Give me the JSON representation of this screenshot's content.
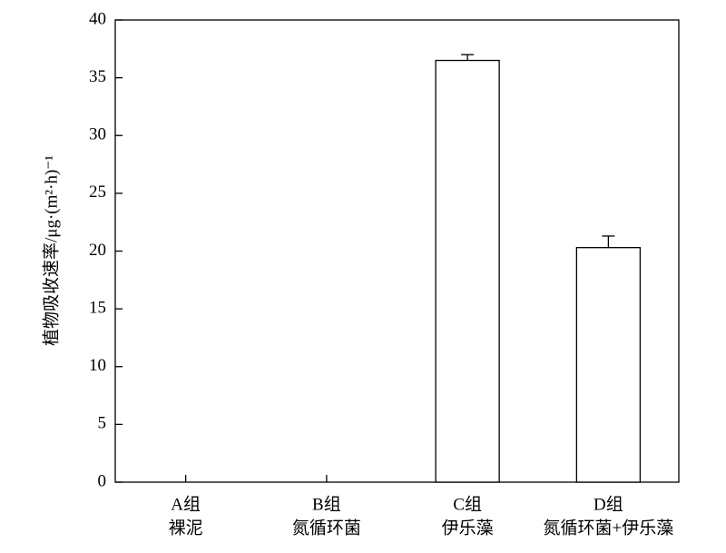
{
  "chart_data": {
    "type": "bar",
    "y_label": "植物吸收速率/μg·(m²·h)⁻¹",
    "categories": [
      [
        "A组",
        "裸泥"
      ],
      [
        "B组",
        "氮循环菌"
      ],
      [
        "C组",
        "伊乐藻"
      ],
      [
        "D组",
        "氮循环菌+伊乐藻"
      ]
    ],
    "values": [
      0,
      0,
      36.5,
      20.3
    ],
    "errors": [
      0,
      0,
      0.5,
      1.0
    ],
    "color": "#ffffff",
    "edge_color": "#000000",
    "ylim": [
      0,
      40
    ],
    "yticks": [
      0,
      5,
      10,
      15,
      20,
      25,
      30,
      35,
      40
    ],
    "grid": false
  }
}
